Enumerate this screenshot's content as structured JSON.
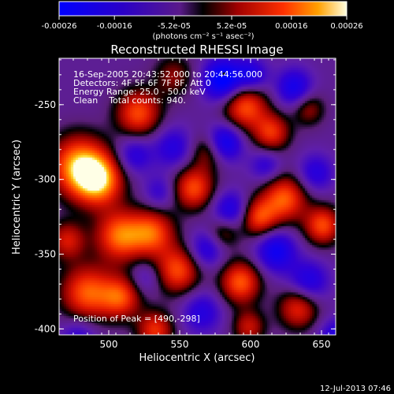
{
  "colorbar": {
    "ticks": [
      "-0.00026",
      "-0.00016",
      "-5.2e-05",
      "5.2e-05",
      "0.00016",
      "0.00026"
    ],
    "units": "(photons cm⁻² s⁻¹ asec⁻²)",
    "range": [
      -0.00026,
      0.00026
    ]
  },
  "chart_data": {
    "type": "heatmap",
    "title": "Reconstructed RHESSI Image",
    "xlabel": "Heliocentric X (arcsec)",
    "ylabel": "Heliocentric Y (arcsec)",
    "xlim": [
      465,
      660
    ],
    "ylim": [
      -404,
      -219
    ],
    "xticks": [
      "500",
      "550",
      "600",
      "650"
    ],
    "yticks": [
      "-250",
      "-300",
      "-350",
      "-400"
    ],
    "annotations": [
      "16-Sep-2005 20:43:52.000 to 20:44:56.000",
      "Detectors: 4F 5F 6F 7F 8F, Att 0",
      "Energy Range: 25.0 - 50.0 keV",
      "Clean    Total counts: 940."
    ],
    "peak_label": "Position of Peak = [490,-298]",
    "peak": [
      490,
      -298
    ],
    "footer": "12-Jul-2013 07:46",
    "blobs": [
      {
        "x": 478,
        "y": -290,
        "v": 1.0,
        "s": 14
      },
      {
        "x": 492,
        "y": -300,
        "v": 1.0,
        "s": 12
      },
      {
        "x": 520,
        "y": -255,
        "v": 0.8,
        "s": 11
      },
      {
        "x": 507,
        "y": -337,
        "v": 0.9,
        "s": 12
      },
      {
        "x": 530,
        "y": -335,
        "v": 0.8,
        "s": 11
      },
      {
        "x": 484,
        "y": -375,
        "v": 0.85,
        "s": 13
      },
      {
        "x": 508,
        "y": -378,
        "v": 0.75,
        "s": 10
      },
      {
        "x": 548,
        "y": -360,
        "v": 0.8,
        "s": 11
      },
      {
        "x": 532,
        "y": -400,
        "v": 0.7,
        "s": 9
      },
      {
        "x": 559,
        "y": -305,
        "v": 0.8,
        "s": 10
      },
      {
        "x": 570,
        "y": -280,
        "v": 0.55,
        "s": 9
      },
      {
        "x": 595,
        "y": -250,
        "v": 0.85,
        "s": 11
      },
      {
        "x": 614,
        "y": -268,
        "v": 0.7,
        "s": 9
      },
      {
        "x": 623,
        "y": -312,
        "v": 0.85,
        "s": 11
      },
      {
        "x": 605,
        "y": -325,
        "v": 0.75,
        "s": 9
      },
      {
        "x": 650,
        "y": -330,
        "v": 0.8,
        "s": 9
      },
      {
        "x": 580,
        "y": -335,
        "v": 0.45,
        "s": 8
      },
      {
        "x": 592,
        "y": -368,
        "v": 0.85,
        "s": 10
      },
      {
        "x": 633,
        "y": -385,
        "v": 0.7,
        "s": 10
      },
      {
        "x": 598,
        "y": -398,
        "v": 0.55,
        "s": 8
      },
      {
        "x": 545,
        "y": -230,
        "v": 0.4,
        "s": 10
      },
      {
        "x": 470,
        "y": -340,
        "v": 0.6,
        "s": 9
      },
      {
        "x": 640,
        "y": -252,
        "v": 0.45,
        "s": 8
      },
      {
        "x": 580,
        "y": -233,
        "v": -0.9,
        "s": 10
      },
      {
        "x": 580,
        "y": -275,
        "v": -0.8,
        "s": 9
      },
      {
        "x": 600,
        "y": -230,
        "v": -0.55,
        "s": 8
      },
      {
        "x": 630,
        "y": -238,
        "v": -0.6,
        "s": 9
      },
      {
        "x": 545,
        "y": -278,
        "v": -0.45,
        "s": 10
      },
      {
        "x": 517,
        "y": -283,
        "v": -0.45,
        "s": 9
      },
      {
        "x": 585,
        "y": -320,
        "v": -0.55,
        "s": 9
      },
      {
        "x": 568,
        "y": -346,
        "v": -0.5,
        "s": 9
      },
      {
        "x": 617,
        "y": -347,
        "v": -0.65,
        "s": 10
      },
      {
        "x": 645,
        "y": -295,
        "v": -0.45,
        "s": 9
      },
      {
        "x": 640,
        "y": -368,
        "v": -0.55,
        "s": 10
      },
      {
        "x": 565,
        "y": -388,
        "v": -0.45,
        "s": 10
      },
      {
        "x": 535,
        "y": -308,
        "v": -0.35,
        "s": 8
      },
      {
        "x": 478,
        "y": -405,
        "v": -0.4,
        "s": 9
      },
      {
        "x": 525,
        "y": -365,
        "v": -0.3,
        "s": 8
      },
      {
        "x": 610,
        "y": -290,
        "v": -0.4,
        "s": 8
      },
      {
        "x": 660,
        "y": -405,
        "v": -0.5,
        "s": 9
      }
    ]
  }
}
